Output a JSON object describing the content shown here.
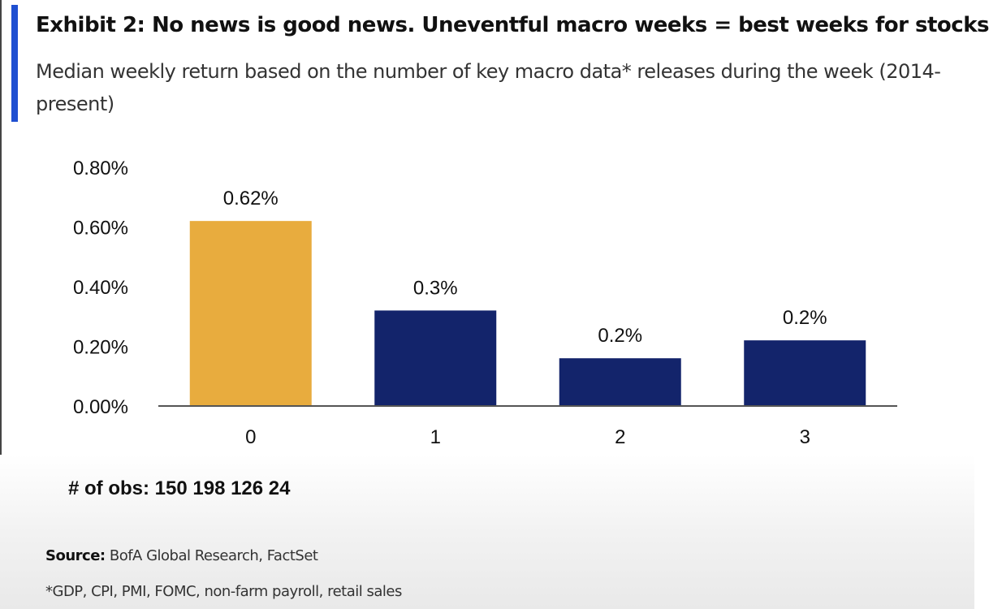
{
  "title": "Exhibit 2: No news is good news. Uneventful macro weeks = best weeks for stocks",
  "subtitle": "Median weekly return based on the number of key macro data* releases during the week (2014-present)",
  "obs_note": "# of obs: 150 198 126 24",
  "source_label": "Source:",
  "source_text": "BofA Global Research, FactSet",
  "footnote": "*GDP, CPI, PMI, FOMC, non-farm payroll, retail sales",
  "colors": {
    "highlight": "#e8ac3e",
    "primary": "#13246b",
    "accent": "#1f4fd1"
  },
  "chart_data": {
    "type": "bar",
    "categories": [
      "0",
      "1",
      "2",
      "3"
    ],
    "values": [
      0.62,
      0.32,
      0.16,
      0.22
    ],
    "data_labels": [
      "0.62%",
      "0.3%",
      "0.2%",
      "0.2%"
    ],
    "highlighted_category": "0",
    "ylim": [
      0,
      0.8
    ],
    "yticks": [
      0,
      0.2,
      0.4,
      0.6,
      0.8
    ],
    "ytick_labels": [
      "0.00%",
      "0.20%",
      "0.40%",
      "0.60%",
      "0.80%"
    ],
    "xlabel": "",
    "ylabel": "",
    "grid": false,
    "legend": "none"
  }
}
